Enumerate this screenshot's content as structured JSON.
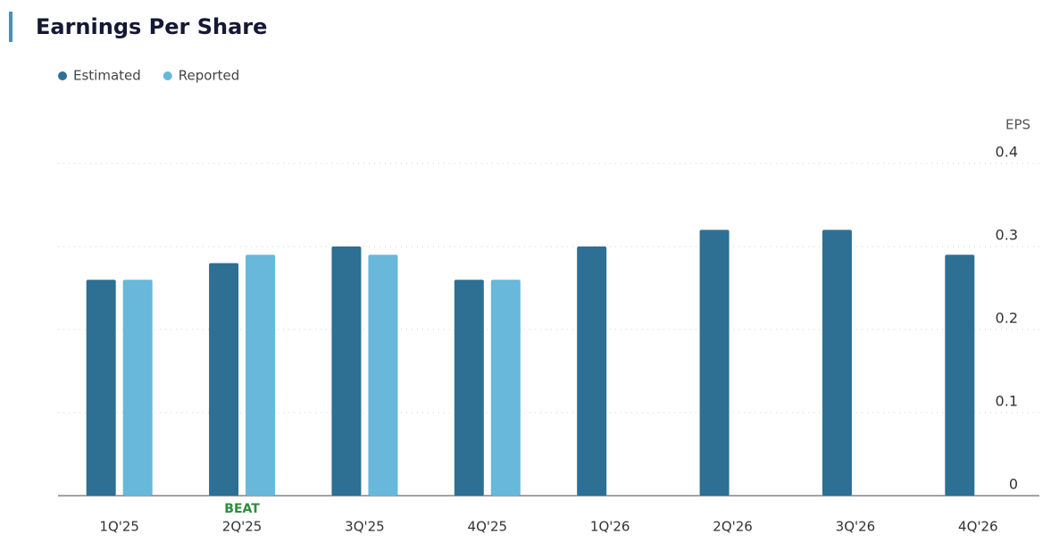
{
  "chart_data": {
    "type": "bar",
    "title": "Earnings Per Share",
    "ylabel": "EPS",
    "categories": [
      "1Q'25",
      "2Q'25",
      "3Q'25",
      "4Q'25",
      "1Q'26",
      "2Q'26",
      "3Q'26",
      "4Q'26"
    ],
    "category_notes": [
      null,
      "BEAT",
      null,
      null,
      null,
      null,
      null,
      null
    ],
    "note_color": "#2e8b3e",
    "series": [
      {
        "name": "Estimated",
        "color": "#2e6f94",
        "values": [
          0.26,
          0.28,
          0.3,
          0.26,
          0.3,
          0.32,
          0.32,
          0.29
        ]
      },
      {
        "name": "Reported",
        "color": "#67b8da",
        "values": [
          0.26,
          0.29,
          0.29,
          0.26,
          null,
          null,
          null,
          null
        ]
      }
    ],
    "ylim": [
      0,
      0.4
    ],
    "yticks": [
      0,
      0.1,
      0.2,
      0.3,
      0.4
    ],
    "grid": true,
    "legend": "top-left"
  }
}
